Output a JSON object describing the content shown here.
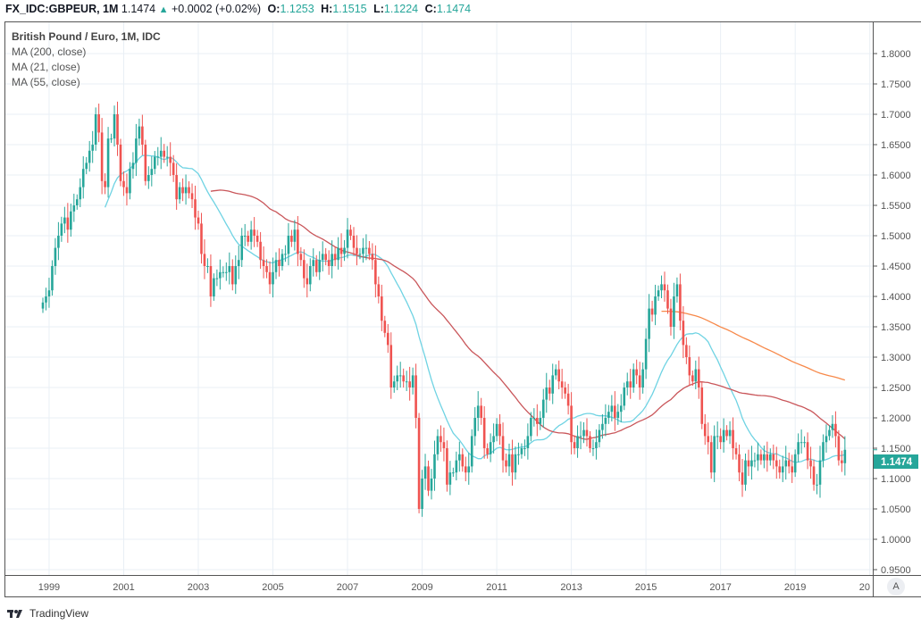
{
  "header": {
    "symbol": "FX_IDC:GBPEUR, 1M",
    "last": "1.1474",
    "change": "+0.0002 (+0.02%)",
    "open_label": "O:",
    "open": "1.1253",
    "high_label": "H:",
    "high": "1.1515",
    "low_label": "L:",
    "low": "1.1224",
    "close_label": "C:",
    "close": "1.1474"
  },
  "legend": {
    "title": "British Pound / Euro, 1M, IDC",
    "ma200": "MA (200, close)",
    "ma21": "MA (21, close)",
    "ma55": "MA (55, close)"
  },
  "footer": {
    "brand": "TradingView"
  },
  "auto_button": "A",
  "colors": {
    "up": "#26a69a",
    "down": "#ef5350",
    "ma21": "#6fd3e3",
    "ma55": "#c9565a",
    "ma200": "#f7894a",
    "grid": "#e9eff5"
  },
  "chart_data": {
    "type": "candlestick",
    "title": "British Pound / Euro, 1M, IDC",
    "interval": "1M",
    "start_month": "1998-11",
    "ylim": [
      0.95,
      1.82
    ],
    "y_ticks": [
      "1.8000",
      "1.7500",
      "1.7000",
      "1.6500",
      "1.6000",
      "1.5500",
      "1.5000",
      "1.4500",
      "1.4000",
      "1.3500",
      "1.3000",
      "1.2500",
      "1.2000",
      "1.1500",
      "1.1000",
      "1.0500",
      "1.0000",
      "0.9500"
    ],
    "x_ticks": [
      "1999",
      "2001",
      "2003",
      "2005",
      "2007",
      "2009",
      "2011",
      "2013",
      "2015",
      "2017",
      "2019",
      "20"
    ],
    "last_price_label": "1.1474",
    "grid": true,
    "moving_averages": [
      {
        "name": "MA (200, close)",
        "period": 200,
        "color": "#f7894a"
      },
      {
        "name": "MA (21, close)",
        "period": 21,
        "color": "#6fd3e3"
      },
      {
        "name": "MA (55, close)",
        "period": 55,
        "color": "#c9565a"
      }
    ],
    "close": [
      1.39,
      1.4,
      1.41,
      1.45,
      1.48,
      1.5,
      1.52,
      1.53,
      1.51,
      1.54,
      1.55,
      1.56,
      1.58,
      1.61,
      1.62,
      1.64,
      1.65,
      1.7,
      1.67,
      1.59,
      1.58,
      1.66,
      1.66,
      1.7,
      1.65,
      1.59,
      1.58,
      1.57,
      1.61,
      1.62,
      1.66,
      1.68,
      1.65,
      1.59,
      1.6,
      1.61,
      1.63,
      1.63,
      1.64,
      1.63,
      1.63,
      1.62,
      1.6,
      1.56,
      1.58,
      1.57,
      1.58,
      1.57,
      1.56,
      1.53,
      1.52,
      1.47,
      1.45,
      1.45,
      1.4,
      1.43,
      1.43,
      1.44,
      1.44,
      1.44,
      1.45,
      1.42,
      1.45,
      1.46,
      1.5,
      1.5,
      1.49,
      1.51,
      1.5,
      1.49,
      1.46,
      1.45,
      1.44,
      1.42,
      1.44,
      1.46,
      1.45,
      1.47,
      1.47,
      1.5,
      1.49,
      1.51,
      1.47,
      1.46,
      1.43,
      1.42,
      1.45,
      1.46,
      1.44,
      1.46,
      1.47,
      1.46,
      1.45,
      1.47,
      1.46,
      1.48,
      1.47,
      1.48,
      1.51,
      1.5,
      1.48,
      1.47,
      1.47,
      1.48,
      1.48,
      1.47,
      1.46,
      1.42,
      1.4,
      1.36,
      1.34,
      1.32,
      1.25,
      1.26,
      1.27,
      1.27,
      1.26,
      1.26,
      1.25,
      1.27,
      1.2,
      1.05,
      1.1,
      1.12,
      1.08,
      1.1,
      1.14,
      1.17,
      1.16,
      1.15,
      1.09,
      1.11,
      1.11,
      1.13,
      1.14,
      1.12,
      1.11,
      1.12,
      1.17,
      1.2,
      1.22,
      1.2,
      1.15,
      1.14,
      1.16,
      1.17,
      1.19,
      1.17,
      1.13,
      1.12,
      1.14,
      1.11,
      1.14,
      1.14,
      1.15,
      1.15,
      1.17,
      1.2,
      1.2,
      1.19,
      1.2,
      1.23,
      1.25,
      1.24,
      1.27,
      1.28,
      1.26,
      1.25,
      1.24,
      1.22,
      1.16,
      1.15,
      1.17,
      1.17,
      1.18,
      1.17,
      1.15,
      1.15,
      1.16,
      1.18,
      1.19,
      1.2,
      1.21,
      1.22,
      1.2,
      1.21,
      1.22,
      1.25,
      1.26,
      1.25,
      1.28,
      1.27,
      1.25,
      1.28,
      1.33,
      1.38,
      1.37,
      1.4,
      1.41,
      1.42,
      1.41,
      1.38,
      1.35,
      1.4,
      1.42,
      1.36,
      1.32,
      1.3,
      1.27,
      1.26,
      1.28,
      1.25,
      1.19,
      1.17,
      1.16,
      1.11,
      1.17,
      1.17,
      1.16,
      1.18,
      1.17,
      1.18,
      1.15,
      1.14,
      1.11,
      1.09,
      1.13,
      1.12,
      1.13,
      1.13,
      1.14,
      1.13,
      1.14,
      1.13,
      1.14,
      1.13,
      1.12,
      1.11,
      1.12,
      1.13,
      1.12,
      1.11,
      1.14,
      1.16,
      1.16,
      1.16,
      1.13,
      1.12,
      1.09,
      1.09,
      1.13,
      1.16,
      1.17,
      1.18,
      1.19,
      1.17,
      1.13,
      1.1253,
      1.1474
    ]
  }
}
